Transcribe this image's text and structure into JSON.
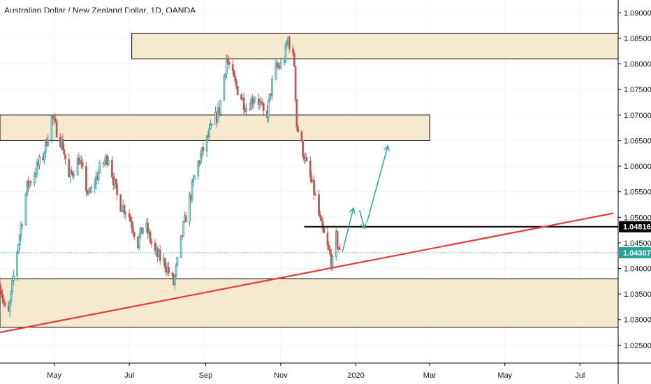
{
  "title": "Australian Dollar / New Zealand Dollar, 1D, OANDA",
  "colors": {
    "up": "#26a69a",
    "up_body": "#d1d4dc",
    "down": "#ef5350",
    "down_body": "#6d6d6d",
    "zone_fill": "#f5e9cf",
    "zone_stroke": "#000000",
    "trendline": "#e53935",
    "arrow": "#26a69a",
    "level_line": "#000000",
    "current_line": "#26a69a",
    "grid": "#f0f3fa",
    "axis_text": "#131722"
  },
  "chart_data": {
    "type": "candlestick",
    "symbol": "AUDNZD",
    "timeframe": "1D",
    "y_ticks": [
      "1.09000",
      "1.08500",
      "1.08000",
      "1.07500",
      "1.07000",
      "1.06500",
      "1.06000",
      "1.05500",
      "1.05000",
      "1.04500",
      "1.04000",
      "1.03500",
      "1.03000",
      "1.02500"
    ],
    "x_ticks": [
      {
        "label": "May",
        "date": "2019-05-01"
      },
      {
        "label": "Jul",
        "date": "2019-07-01"
      },
      {
        "label": "Sep",
        "date": "2019-09-01"
      },
      {
        "label": "Nov",
        "date": "2019-11-01"
      },
      {
        "label": "2020",
        "date": "2020-01-01"
      },
      {
        "label": "Mar",
        "date": "2020-03-01"
      },
      {
        "label": "May",
        "date": "2020-05-01"
      },
      {
        "label": "Jul",
        "date": "2020-07-01"
      }
    ],
    "x_range": [
      "2019-03-18",
      "2020-08-01"
    ],
    "y_range": [
      1.0215,
      1.0925
    ],
    "price_tags": [
      {
        "value": "1.04816",
        "price": 1.04816,
        "style": "level"
      },
      {
        "value": "1.04307",
        "price": 1.04307,
        "style": "current"
      }
    ],
    "zones": [
      {
        "from": "2019-07-03",
        "to": "2020-08-01",
        "low": 1.081,
        "high": 1.086
      },
      {
        "from": "2019-03-18",
        "to": "2020-03-01",
        "low": 1.065,
        "high": 1.07
      },
      {
        "from": "2019-03-18",
        "to": "2020-08-01",
        "low": 1.0285,
        "high": 1.038
      }
    ],
    "trendline": {
      "start": {
        "date": "2019-03-18",
        "price": 1.0275
      },
      "end": {
        "date": "2020-07-28",
        "price": 1.0508
      }
    },
    "horizontal_level": {
      "from": "2019-11-20",
      "to": "2020-08-01",
      "price": 1.04816
    },
    "current_price_line": {
      "price": 1.04307
    },
    "projection_arrows": [
      {
        "from": {
          "date": "2019-12-21",
          "price": 1.0432
        },
        "to": {
          "date": "2019-12-30",
          "price": 1.0518
        }
      },
      {
        "from": {
          "date": "2020-01-04",
          "price": 1.0514
        },
        "to": {
          "date": "2020-01-08",
          "price": 1.0478
        }
      },
      {
        "from": {
          "date": "2020-01-10",
          "price": 1.049
        },
        "to": {
          "date": "2020-01-27",
          "price": 1.064
        }
      }
    ],
    "series_anchor_points": [
      {
        "date": "2019-03-18",
        "price": 1.0372
      },
      {
        "date": "2019-03-24",
        "price": 1.0292
      },
      {
        "date": "2019-03-31",
        "price": 1.042
      },
      {
        "date": "2019-04-09",
        "price": 1.056
      },
      {
        "date": "2019-04-22",
        "price": 1.062
      },
      {
        "date": "2019-04-29",
        "price": 1.0695
      },
      {
        "date": "2019-05-08",
        "price": 1.064
      },
      {
        "date": "2019-05-13",
        "price": 1.0575
      },
      {
        "date": "2019-05-21",
        "price": 1.0615
      },
      {
        "date": "2019-05-29",
        "price": 1.054
      },
      {
        "date": "2019-06-08",
        "price": 1.06
      },
      {
        "date": "2019-06-14",
        "price": 1.062
      },
      {
        "date": "2019-06-22",
        "price": 1.053
      },
      {
        "date": "2019-06-30",
        "price": 1.051
      },
      {
        "date": "2019-07-08",
        "price": 1.045
      },
      {
        "date": "2019-07-13",
        "price": 1.049
      },
      {
        "date": "2019-07-22",
        "price": 1.043
      },
      {
        "date": "2019-07-30",
        "price": 1.041
      },
      {
        "date": "2019-08-06",
        "price": 1.037
      },
      {
        "date": "2019-08-14",
        "price": 1.048
      },
      {
        "date": "2019-08-25",
        "price": 1.06
      },
      {
        "date": "2019-09-05",
        "price": 1.067
      },
      {
        "date": "2019-09-12",
        "price": 1.071
      },
      {
        "date": "2019-09-18",
        "price": 1.081
      },
      {
        "date": "2019-09-25",
        "price": 1.076
      },
      {
        "date": "2019-10-04",
        "price": 1.0715
      },
      {
        "date": "2019-10-12",
        "price": 1.074
      },
      {
        "date": "2019-10-20",
        "price": 1.069
      },
      {
        "date": "2019-10-27",
        "price": 1.079
      },
      {
        "date": "2019-11-03",
        "price": 1.08
      },
      {
        "date": "2019-11-07",
        "price": 1.085
      },
      {
        "date": "2019-11-12",
        "price": 1.08
      },
      {
        "date": "2019-11-14",
        "price": 1.068
      },
      {
        "date": "2019-11-22",
        "price": 1.06
      },
      {
        "date": "2019-11-28",
        "price": 1.055
      },
      {
        "date": "2019-12-04",
        "price": 1.048
      },
      {
        "date": "2019-12-09",
        "price": 1.044
      },
      {
        "date": "2019-12-13",
        "price": 1.041
      },
      {
        "date": "2019-12-16",
        "price": 1.046
      },
      {
        "date": "2019-12-19",
        "price": 1.043
      }
    ]
  }
}
